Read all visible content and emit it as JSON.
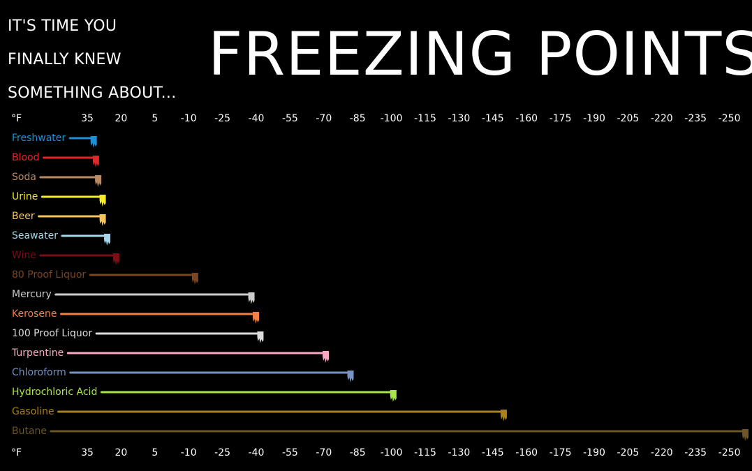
{
  "header": {
    "intro_lines": [
      "IT'S TIME YOU",
      "FINALLY KNEW",
      "SOMETHING ABOUT..."
    ],
    "title": "FREEZING POINTS"
  },
  "chart_data": {
    "type": "bar",
    "orientation": "horizontal",
    "unit_label": "°F",
    "axis_ticks": [
      35,
      20,
      5,
      -10,
      -25,
      -40,
      -55,
      -70,
      -85,
      -100,
      -115,
      -130,
      -145,
      -160,
      -175,
      -190,
      -205,
      -220,
      -235,
      -250
    ],
    "axis_top": true,
    "axis_bottom": true,
    "xlim": [
      35,
      -250
    ],
    "grid": false,
    "categories": [
      "Freshwater",
      "Blood",
      "Soda",
      "Urine",
      "Beer",
      "Seawater",
      "Wine",
      "80 Proof Liquor",
      "Mercury",
      "Kerosene",
      "100 Proof Liquor",
      "Turpentine",
      "Chloroform",
      "Hydrochloric Acid",
      "Gasoline",
      "Butane"
    ],
    "values": [
      32,
      31,
      30,
      28,
      28,
      26,
      22,
      -13,
      -38,
      -40,
      -42,
      -71,
      -82,
      -101,
      -150,
      -260
    ],
    "colors": [
      "#1e90d8",
      "#e02828",
      "#b98a63",
      "#f4ec2a",
      "#f6c55a",
      "#a4d8ec",
      "#7b0f16",
      "#7a4520",
      "#cccccc",
      "#f08046",
      "#dcdcdc",
      "#f9a8c2",
      "#7892c2",
      "#a6e64c",
      "#a8801e",
      "#6e5525"
    ]
  }
}
